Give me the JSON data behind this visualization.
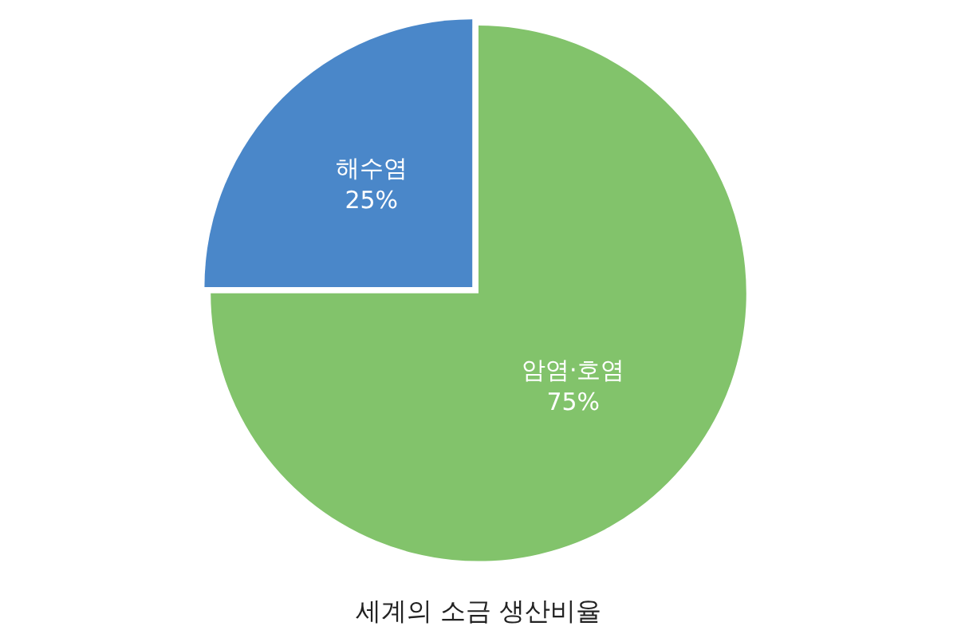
{
  "chart_data": {
    "type": "pie",
    "title": "세계의 소금 생산비율",
    "categories": [
      "해수염",
      "암염·호염"
    ],
    "values": [
      25,
      75
    ],
    "colors": [
      "#4a87c9",
      "#82c36b"
    ],
    "value_labels": [
      "25%",
      "75%"
    ],
    "legend": false
  }
}
